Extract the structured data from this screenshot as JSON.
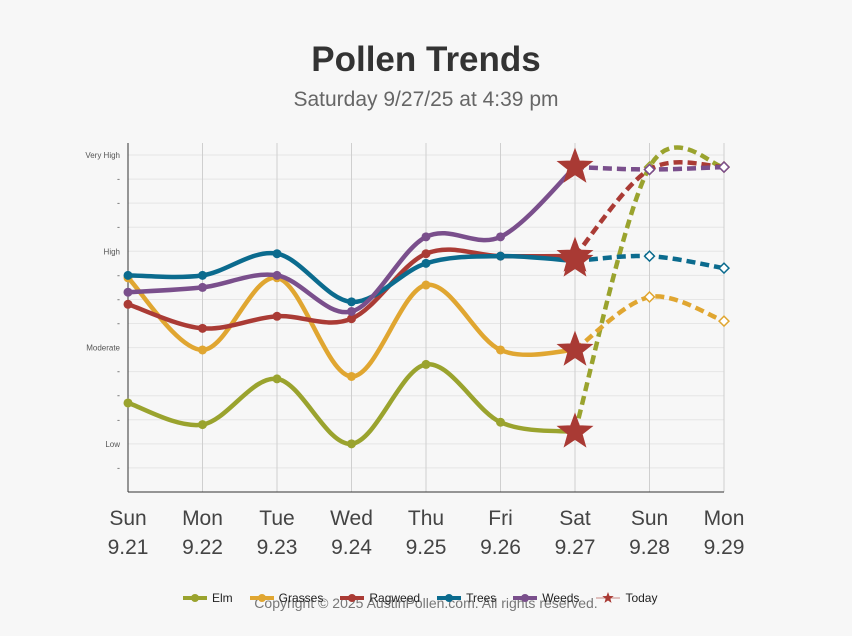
{
  "header": {
    "title": "Pollen Trends",
    "subtitle": "Saturday 9/27/25 at 4:39 pm"
  },
  "footer": {
    "copyright": "Copyright © 2025 AustinPollen.com.  All rights reserved."
  },
  "chart_data": {
    "type": "line",
    "title": "Pollen Trends",
    "subtitle": "Saturday 9/27/25 at 4:39 pm",
    "categories": [
      {
        "day": "Sun",
        "date": "9.21"
      },
      {
        "day": "Mon",
        "date": "9.22"
      },
      {
        "day": "Tue",
        "date": "9.23"
      },
      {
        "day": "Wed",
        "date": "9.24"
      },
      {
        "day": "Thu",
        "date": "9.25"
      },
      {
        "day": "Fri",
        "date": "9.26"
      },
      {
        "day": "Sat",
        "date": "9.27"
      },
      {
        "day": "Sun",
        "date": "9.28"
      },
      {
        "day": "Mon",
        "date": "9.29"
      }
    ],
    "y_ticks": [
      {
        "value": 0,
        "label": "-"
      },
      {
        "value": 1,
        "label": "Low"
      },
      {
        "value": 2,
        "label": "-"
      },
      {
        "value": 3,
        "label": "-"
      },
      {
        "value": 4,
        "label": "-"
      },
      {
        "value": 5,
        "label": "Moderate"
      },
      {
        "value": 6,
        "label": "-"
      },
      {
        "value": 7,
        "label": "-"
      },
      {
        "value": 8,
        "label": "-"
      },
      {
        "value": 9,
        "label": "High"
      },
      {
        "value": 10,
        "label": "-"
      },
      {
        "value": 11,
        "label": "-"
      },
      {
        "value": 12,
        "label": "-"
      },
      {
        "value": 13,
        "label": "Very High"
      }
    ],
    "ylim": [
      -1,
      13.5
    ],
    "grid": true,
    "today_index": 6,
    "legend": {
      "position": "bottom",
      "today_label": "Today"
    },
    "series": [
      {
        "name": "Elm",
        "color": "#9aa32e",
        "values": [
          2.7,
          1.8,
          3.7,
          1.0,
          4.3,
          1.9,
          1.5,
          12.5,
          12.5
        ]
      },
      {
        "name": "Grasses",
        "color": "#e0a631",
        "values": [
          7.9,
          4.9,
          7.9,
          3.8,
          7.6,
          4.9,
          4.9,
          7.1,
          6.1
        ]
      },
      {
        "name": "Ragweed",
        "color": "#aa3b35",
        "values": [
          6.8,
          5.8,
          6.3,
          6.2,
          8.9,
          8.8,
          8.8,
          12.4,
          12.5
        ]
      },
      {
        "name": "Trees",
        "color": "#0b6b8e",
        "values": [
          8.0,
          8.0,
          8.9,
          6.9,
          8.5,
          8.8,
          8.6,
          8.8,
          8.3
        ]
      },
      {
        "name": "Weeds",
        "color": "#7a4f8c",
        "values": [
          7.3,
          7.5,
          8.0,
          6.5,
          9.6,
          9.6,
          12.5,
          12.4,
          12.5
        ]
      }
    ]
  }
}
